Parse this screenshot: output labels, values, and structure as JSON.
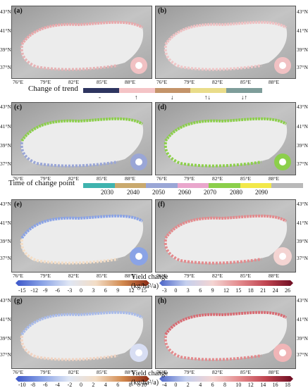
{
  "panels": [
    {
      "label": "(a)"
    },
    {
      "label": "(b)"
    },
    {
      "label": "(c)"
    },
    {
      "label": "(d)"
    },
    {
      "label": "(e)"
    },
    {
      "label": "(f)"
    },
    {
      "label": "(g)"
    },
    {
      "label": "(h)"
    }
  ],
  "axes": {
    "lon_ticks": [
      "76°E",
      "79°E",
      "82°E",
      "85°E",
      "88°E"
    ],
    "lat_ticks": [
      "43°N",
      "41°N",
      "39°N",
      "37°N"
    ]
  },
  "trend_legend": {
    "title": "Change of trend",
    "items": [
      {
        "label": "-",
        "color": "#2e3560"
      },
      {
        "label": "↑",
        "color": "#f4c4c6"
      },
      {
        "label": "↓",
        "color": "#c4946a"
      },
      {
        "label": "↑↓",
        "color": "#e9dc8a"
      },
      {
        "label": "↓↑",
        "color": "#7e9d9a"
      }
    ]
  },
  "time_legend": {
    "title": "Time of change point",
    "items": [
      {
        "label": "2030",
        "color": "#3fb3ae"
      },
      {
        "label": "2040",
        "color": "#c9a96e"
      },
      {
        "label": "2050",
        "color": "#9aa6d6"
      },
      {
        "label": "2060",
        "color": "#e9a6cc"
      },
      {
        "label": "2070",
        "color": "#8ccf4b"
      },
      {
        "label": "2080",
        "color": "#f2e84a"
      },
      {
        "label": "2090",
        "color": "#b9b9b9"
      }
    ]
  },
  "colorbars": [
    {
      "title": "Yield change",
      "unit": "(kg/ha²/a)",
      "ticks": [
        "-15",
        "-12",
        "-9",
        "-6",
        "-3",
        "0",
        "3",
        "6",
        "9",
        "12",
        "15"
      ],
      "colors": [
        "#3b56c9",
        "#8aa3e6",
        "#dfe6f4",
        "#f3ddc6",
        "#d28a4f",
        "#8b2a14"
      ]
    },
    {
      "title": "",
      "unit": "",
      "ticks": [
        "-3",
        "0",
        "3",
        "6",
        "9",
        "12",
        "15",
        "18",
        "21",
        "24",
        "26"
      ],
      "colors": [
        "#4d66c9",
        "#c5d0ee",
        "#f4d4d2",
        "#e38a8d",
        "#c04450",
        "#6d0d22"
      ]
    },
    {
      "title": "Yield change",
      "unit": "(kg/ha²/a)",
      "ticks": [
        "-10",
        "-8",
        "-6",
        "-4",
        "-2",
        "0",
        "2",
        "4",
        "6",
        "8",
        "10"
      ],
      "colors": [
        "#3b56c9",
        "#8aa3e6",
        "#dfe6f4",
        "#f3ddc6",
        "#d28a4f",
        "#8b2a14"
      ]
    },
    {
      "title": "",
      "unit": "",
      "ticks": [
        "-4",
        "0",
        "2",
        "4",
        "6",
        "8",
        "10",
        "12",
        "14",
        "16",
        "18"
      ],
      "colors": [
        "#4d66c9",
        "#c5d0ee",
        "#f4d4d2",
        "#e38a8d",
        "#c04450",
        "#6d0d22"
      ]
    }
  ]
}
